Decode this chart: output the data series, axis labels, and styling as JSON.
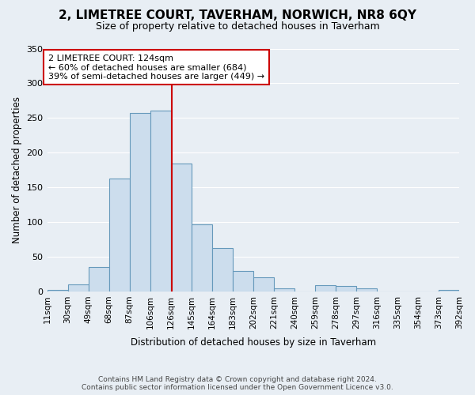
{
  "title": "2, LIMETREE COURT, TAVERHAM, NORWICH, NR8 6QY",
  "subtitle": "Size of property relative to detached houses in Taverham",
  "xlabel": "Distribution of detached houses by size in Taverham",
  "ylabel": "Number of detached properties",
  "bin_labels": [
    "11sqm",
    "30sqm",
    "49sqm",
    "68sqm",
    "87sqm",
    "106sqm",
    "126sqm",
    "145sqm",
    "164sqm",
    "183sqm",
    "202sqm",
    "221sqm",
    "240sqm",
    "259sqm",
    "278sqm",
    "297sqm",
    "316sqm",
    "335sqm",
    "354sqm",
    "373sqm",
    "392sqm"
  ],
  "bar_values": [
    2,
    10,
    35,
    163,
    257,
    261,
    184,
    97,
    62,
    29,
    20,
    4,
    0,
    9,
    8,
    4,
    0,
    0,
    0,
    2
  ],
  "bar_color": "#ccdded",
  "bar_edge_color": "#6699bb",
  "annotation_text_lines": [
    "2 LIMETREE COURT: 124sqm",
    "← 60% of detached houses are smaller (684)",
    "39% of semi-detached houses are larger (449) →"
  ],
  "annotation_box_color": "#ffffff",
  "annotation_box_edge_color": "#cc0000",
  "vline_color": "#cc0000",
  "ylim": [
    0,
    350
  ],
  "yticks": [
    0,
    50,
    100,
    150,
    200,
    250,
    300,
    350
  ],
  "footer_line1": "Contains HM Land Registry data © Crown copyright and database right 2024.",
  "footer_line2": "Contains public sector information licensed under the Open Government Licence v3.0.",
  "bg_color": "#e8eef4",
  "plot_bg_color": "#e8eef4",
  "grid_color": "#ffffff",
  "title_fontsize": 11,
  "subtitle_fontsize": 9
}
